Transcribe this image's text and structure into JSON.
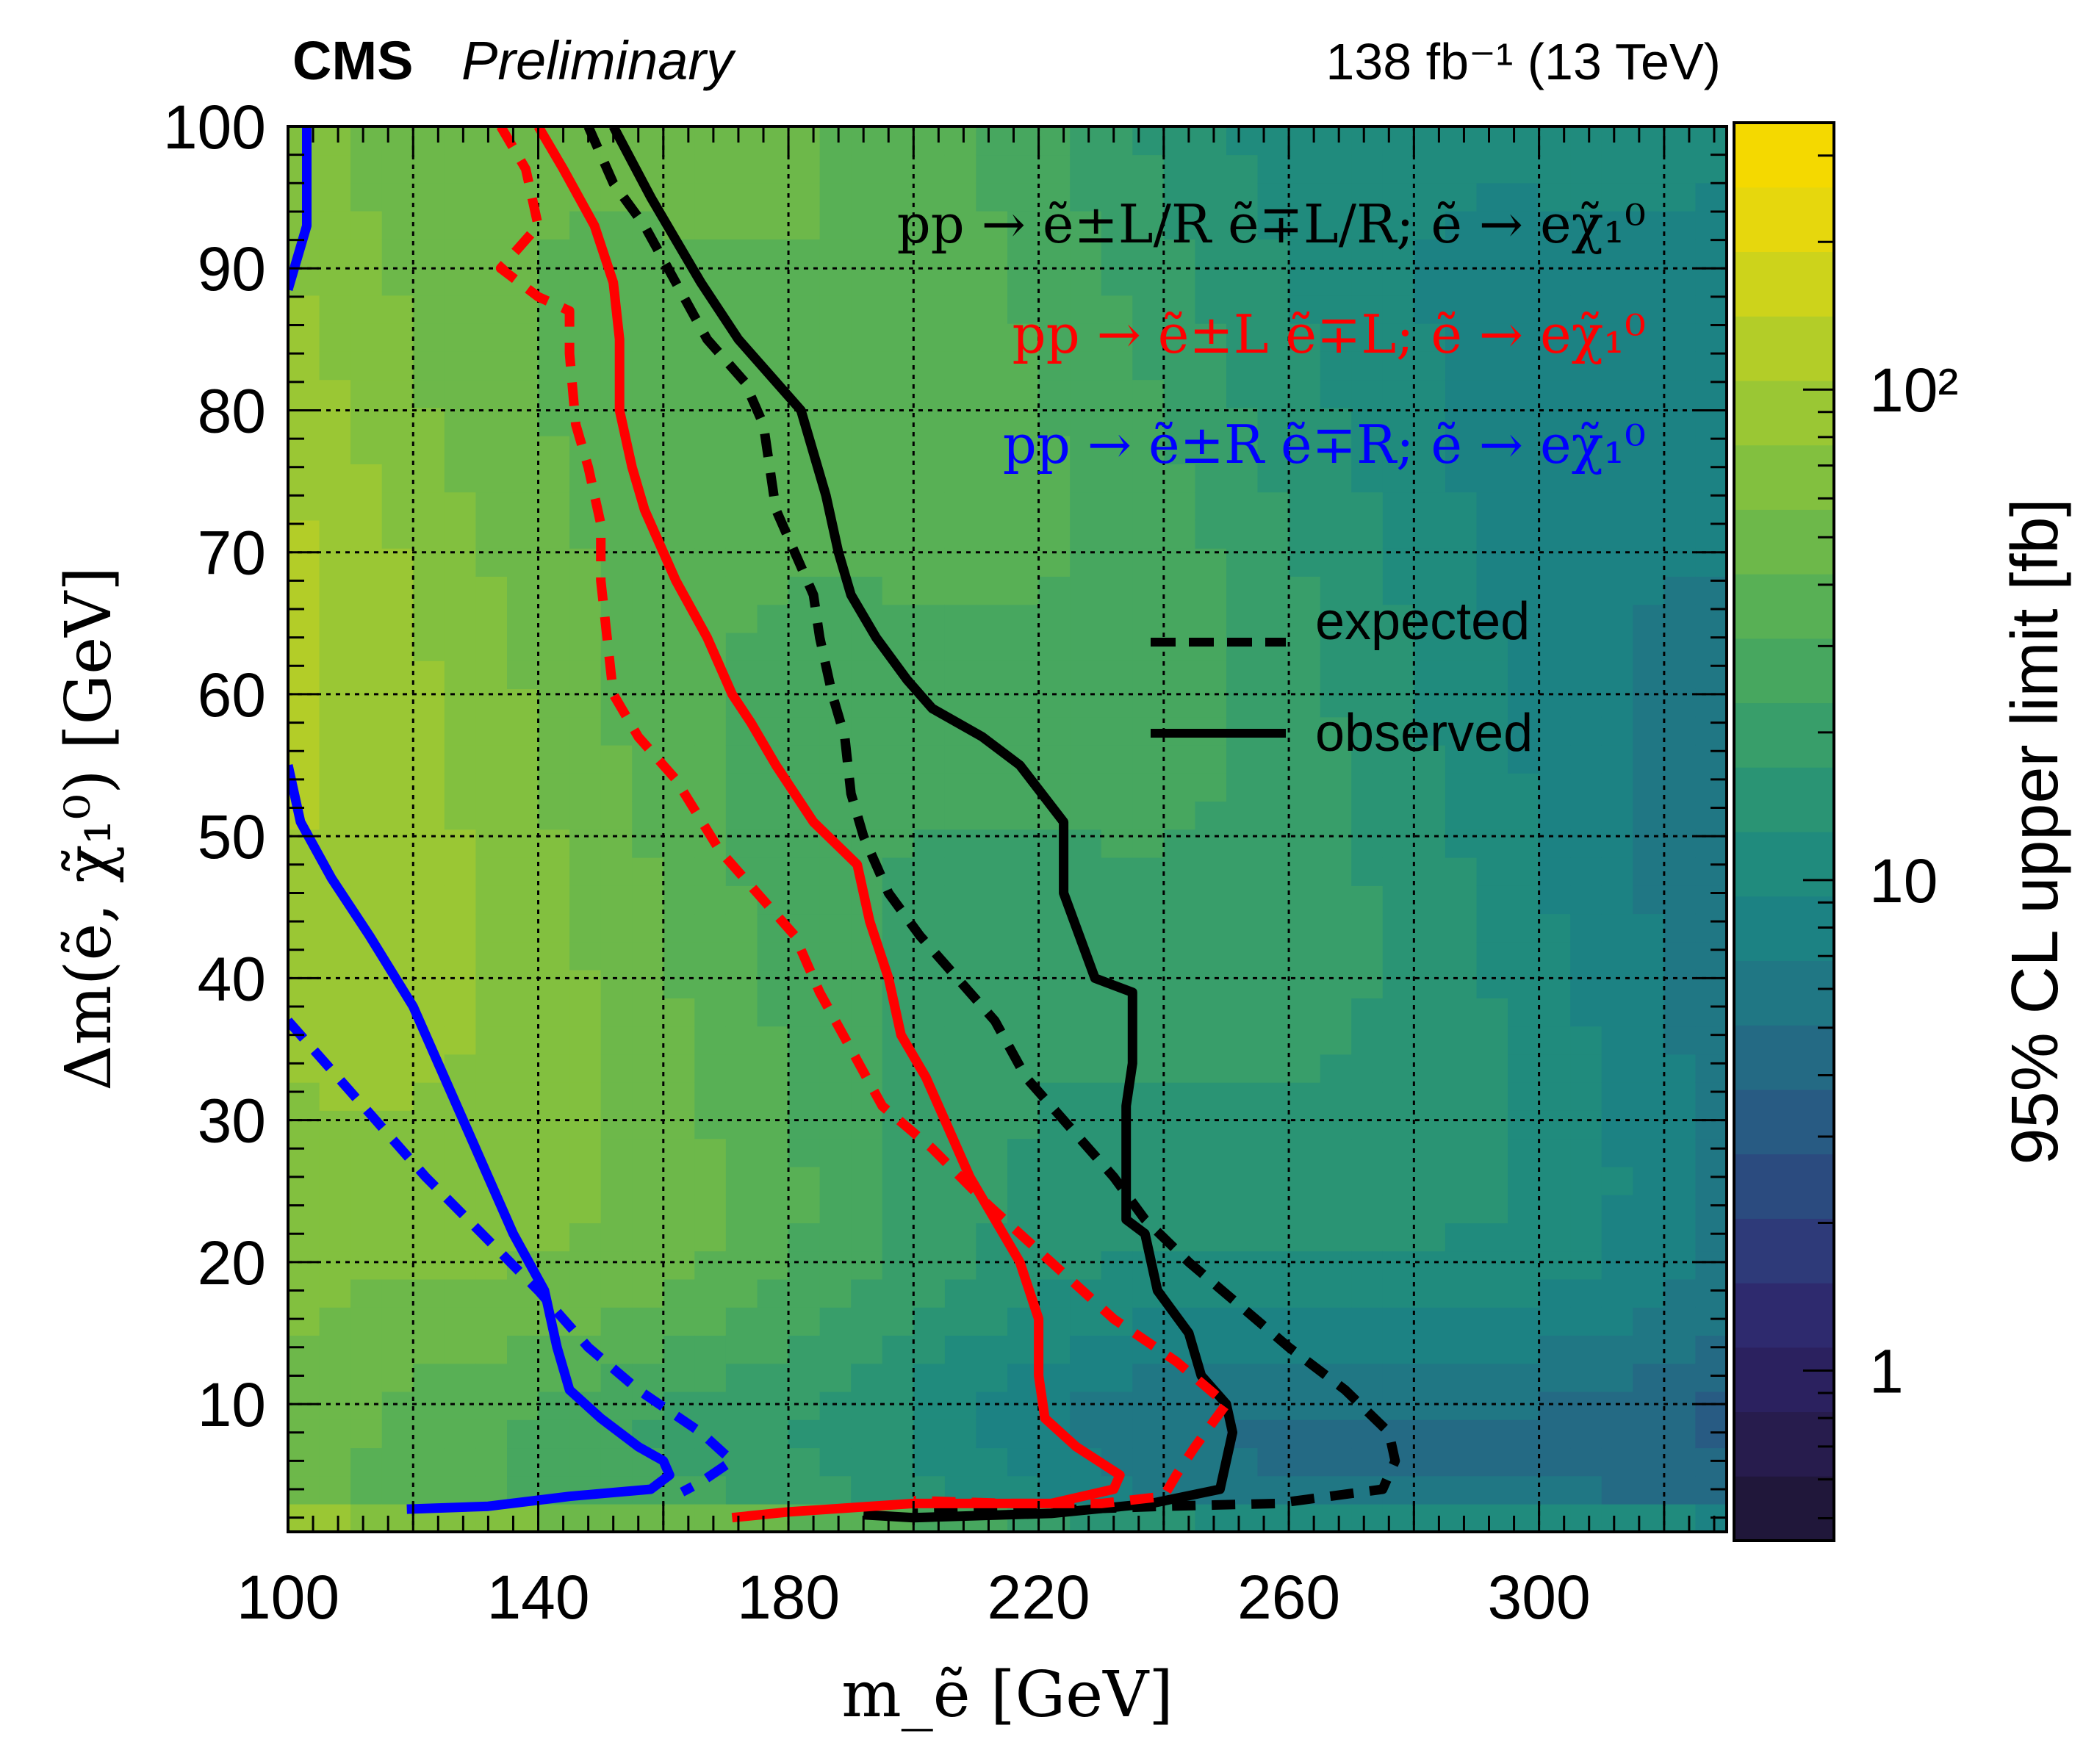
{
  "header": {
    "experiment": "CMS",
    "status": "Preliminary",
    "lumi_energy": "138 fb⁻¹ (13 TeV)"
  },
  "chart_data": {
    "type": "heatmap",
    "title": "",
    "xlabel": "m_ẽ [GeV]",
    "ylabel": "Δm(ẽ, χ̃₁⁰) [GeV]",
    "zlabel": "95% CL upper limit [fb]",
    "xlim": [
      100,
      330
    ],
    "ylim": [
      1,
      100
    ],
    "zscale": "log",
    "zlim": [
      0.45,
      350
    ],
    "x_ticks": [
      100,
      140,
      180,
      220,
      260,
      300
    ],
    "y_ticks": [
      10,
      20,
      30,
      40,
      50,
      60,
      70,
      80,
      90,
      100
    ],
    "z_ticks": [
      {
        "value": 1,
        "label": "1"
      },
      {
        "value": 10,
        "label": "10"
      },
      {
        "value": 100,
        "label": "10²"
      }
    ],
    "grid": true,
    "colorbar_colors": [
      "#20173a",
      "#271c4d",
      "#2b215f",
      "#2e2a6e",
      "#2e3a79",
      "#2b4b7f",
      "#285b83",
      "#246a84",
      "#207784",
      "#1c8283",
      "#208b7d",
      "#2a9474",
      "#389e6a",
      "#47a75f",
      "#58b055",
      "#6db84a",
      "#82c03f",
      "#9ac734",
      "#b3cd28",
      "#cdd31b",
      "#e6d70d",
      "#f4d900"
    ],
    "legend": {
      "placement": "top-right",
      "process_labels": [
        {
          "text": "pp → ẽ±L/R ẽ∓L/R; ẽ → eχ̃₁⁰",
          "color": "#000000"
        },
        {
          "text": "pp → ẽ±L ẽ∓L; ẽ → eχ̃₁⁰",
          "color": "#ff0000"
        },
        {
          "text": "pp → ẽ±R ẽ∓R; ẽ → eχ̃₁⁰",
          "color": "#0000ff"
        }
      ],
      "line_styles": [
        {
          "label": "expected",
          "style": "dashed"
        },
        {
          "label": "observed",
          "style": "solid"
        }
      ]
    },
    "series": [
      {
        "process": "L/R",
        "kind": "observed",
        "color": "#000000",
        "style": "solid",
        "points": [
          [
            152,
            100
          ],
          [
            158,
            95
          ],
          [
            162,
            92
          ],
          [
            166,
            89
          ],
          [
            172,
            85
          ],
          [
            178,
            82
          ],
          [
            182,
            80
          ],
          [
            184,
            77
          ],
          [
            186,
            74
          ],
          [
            188,
            70
          ],
          [
            190,
            67
          ],
          [
            194,
            64
          ],
          [
            199,
            61
          ],
          [
            203,
            59
          ],
          [
            211,
            57
          ],
          [
            217,
            55
          ],
          [
            224,
            51
          ],
          [
            224,
            46
          ],
          [
            229,
            40
          ],
          [
            235,
            39
          ],
          [
            235,
            34
          ],
          [
            234,
            31
          ],
          [
            234,
            23
          ],
          [
            237,
            22
          ],
          [
            239,
            18
          ],
          [
            244,
            15
          ],
          [
            246,
            12
          ],
          [
            250,
            10
          ],
          [
            251,
            8
          ],
          [
            249,
            4
          ],
          [
            238,
            3
          ],
          [
            222,
            2.3
          ],
          [
            200,
            2.0
          ],
          [
            192,
            2.2
          ]
        ]
      },
      {
        "process": "L/R",
        "kind": "expected",
        "color": "#000000",
        "style": "dashed",
        "points": [
          [
            148,
            100
          ],
          [
            152,
            96
          ],
          [
            157,
            93
          ],
          [
            162,
            89
          ],
          [
            167,
            85
          ],
          [
            173,
            82
          ],
          [
            176,
            79
          ],
          [
            177,
            76
          ],
          [
            178,
            73
          ],
          [
            181,
            70
          ],
          [
            184,
            67
          ],
          [
            185,
            64
          ],
          [
            187,
            60
          ],
          [
            189,
            57
          ],
          [
            190,
            53
          ],
          [
            192,
            50
          ],
          [
            196,
            46
          ],
          [
            201,
            43
          ],
          [
            207,
            40
          ],
          [
            213,
            37
          ],
          [
            218,
            33
          ],
          [
            226,
            29
          ],
          [
            232,
            26
          ],
          [
            237,
            23
          ],
          [
            244,
            20
          ],
          [
            252,
            17
          ],
          [
            260,
            14
          ],
          [
            269,
            11
          ],
          [
            276,
            8
          ],
          [
            277,
            6
          ],
          [
            275,
            4
          ],
          [
            258,
            3
          ],
          [
            240,
            2.8
          ],
          [
            220,
            2.5
          ],
          [
            200,
            2.3
          ]
        ]
      },
      {
        "process": "L",
        "kind": "observed",
        "color": "#ff0000",
        "style": "solid",
        "points": [
          [
            140,
            100
          ],
          [
            144,
            97
          ],
          [
            149,
            93
          ],
          [
            152,
            89
          ],
          [
            153,
            85
          ],
          [
            153,
            80
          ],
          [
            155,
            76
          ],
          [
            157,
            73
          ],
          [
            162,
            68
          ],
          [
            167,
            64
          ],
          [
            171,
            60
          ],
          [
            174,
            58
          ],
          [
            178,
            55
          ],
          [
            184,
            51
          ],
          [
            191,
            48
          ],
          [
            193,
            44
          ],
          [
            196,
            40
          ],
          [
            198,
            36
          ],
          [
            202,
            33
          ],
          [
            205,
            30
          ],
          [
            209,
            26
          ],
          [
            213,
            23
          ],
          [
            217,
            20
          ],
          [
            220,
            16
          ],
          [
            220,
            12
          ],
          [
            221,
            9
          ],
          [
            226,
            7
          ],
          [
            233,
            5
          ],
          [
            232,
            4
          ],
          [
            222,
            3
          ],
          [
            200,
            3
          ],
          [
            180,
            2.4
          ],
          [
            171,
            2.0
          ]
        ]
      },
      {
        "process": "L",
        "kind": "expected",
        "color": "#ff0000",
        "style": "dashed",
        "points": [
          [
            134,
            100
          ],
          [
            138,
            97
          ],
          [
            140,
            93
          ],
          [
            134,
            90
          ],
          [
            140,
            88
          ],
          [
            145,
            87
          ],
          [
            145,
            84
          ],
          [
            146,
            79
          ],
          [
            148,
            76
          ],
          [
            150,
            72
          ],
          [
            150,
            68
          ],
          [
            151,
            64
          ],
          [
            152,
            60
          ],
          [
            156,
            57
          ],
          [
            162,
            54
          ],
          [
            169,
            49
          ],
          [
            175,
            46
          ],
          [
            181,
            43
          ],
          [
            185,
            39
          ],
          [
            190,
            35
          ],
          [
            195,
            31
          ],
          [
            203,
            28
          ],
          [
            212,
            24
          ],
          [
            222,
            20
          ],
          [
            232,
            16
          ],
          [
            242,
            13
          ],
          [
            250,
            10
          ],
          [
            245,
            7
          ],
          [
            242,
            5
          ],
          [
            240,
            3.5
          ],
          [
            230,
            3
          ],
          [
            215,
            3.0
          ],
          [
            200,
            3.2
          ]
        ]
      },
      {
        "process": "R",
        "kind": "observed",
        "color": "#0000ff",
        "style": "solid",
        "points": [
          [
            103,
            100
          ],
          [
            103,
            95
          ],
          [
            103,
            93
          ],
          [
            101,
            90
          ],
          [
            100,
            88.5
          ]
        ]
      },
      {
        "process": "R",
        "kind": "observed",
        "color": "#0000ff",
        "style": "solid",
        "points": [
          [
            100,
            55
          ],
          [
            102,
            51
          ],
          [
            107,
            47
          ],
          [
            113,
            43
          ],
          [
            120,
            38
          ],
          [
            124,
            34
          ],
          [
            128,
            30
          ],
          [
            132,
            26
          ],
          [
            136,
            22
          ],
          [
            141,
            18
          ],
          [
            143,
            14
          ],
          [
            145,
            11
          ],
          [
            150,
            9
          ],
          [
            156,
            7
          ],
          [
            160,
            6
          ],
          [
            161,
            5
          ],
          [
            158,
            4
          ],
          [
            145,
            3.5
          ],
          [
            132,
            2.8
          ],
          [
            119,
            2.6
          ]
        ]
      },
      {
        "process": "R",
        "kind": "expected",
        "color": "#0000ff",
        "style": "dashed",
        "points": [
          [
            100,
            37
          ],
          [
            106,
            34
          ],
          [
            114,
            30
          ],
          [
            122,
            26
          ],
          [
            131,
            22
          ],
          [
            140,
            18
          ],
          [
            148,
            14
          ],
          [
            156,
            11
          ],
          [
            166,
            8
          ],
          [
            171,
            6
          ],
          [
            166,
            4.5
          ],
          [
            163,
            3.8
          ]
        ]
      }
    ]
  }
}
